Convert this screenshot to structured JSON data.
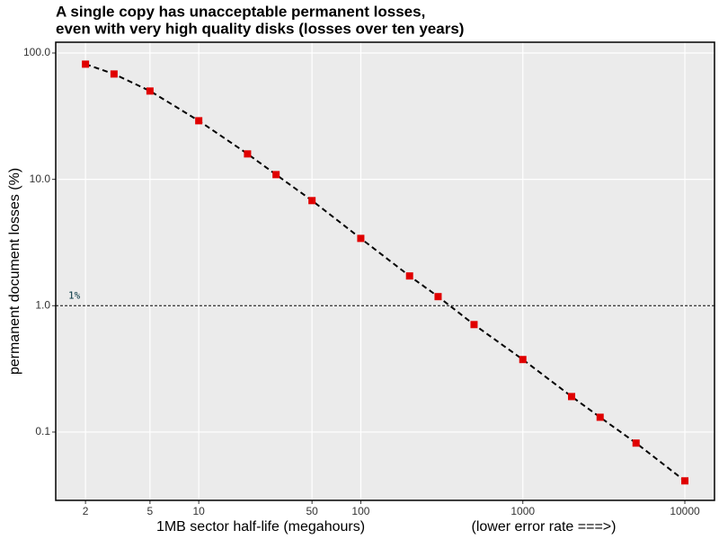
{
  "chart_data": {
    "type": "scatter",
    "title": [
      "A single copy has unacceptable permanent losses,",
      "even with very high quality disks (losses over ten years)"
    ],
    "x_label": "1MB sector half-life (megahours)",
    "x_label_note": "(lower error rate ===>)",
    "y_label": "permanent document losses (%)",
    "x": [
      2,
      3,
      5,
      10,
      20,
      30,
      50,
      100,
      200,
      300,
      500,
      1000,
      2000,
      3000,
      5000,
      10000
    ],
    "series": [
      {
        "color": "#e00000",
        "line_color": "#000000",
        "values": [
          81.6,
          68.2,
          50,
          29.1,
          15.9,
          10.9,
          6.79,
          3.41,
          1.72,
          1.18,
          0.709,
          0.375,
          0.191,
          0.131,
          0.0818,
          0.0411
        ]
      }
    ],
    "xlim": [
      1.31,
      15240
    ],
    "ylim": [
      0.0288,
      121.7
    ],
    "xticks": [
      2,
      5,
      10,
      50,
      100,
      1000,
      10000
    ],
    "yticks": [
      {
        "value": 100,
        "label": "100.0"
      },
      {
        "value": 10,
        "label": "10.0"
      },
      {
        "value": 1,
        "label": "1.0"
      },
      0.1
    ],
    "xscale": "log",
    "yscale": "log",
    "grid": true,
    "hline": {
      "value": 1,
      "label": "1%"
    }
  }
}
